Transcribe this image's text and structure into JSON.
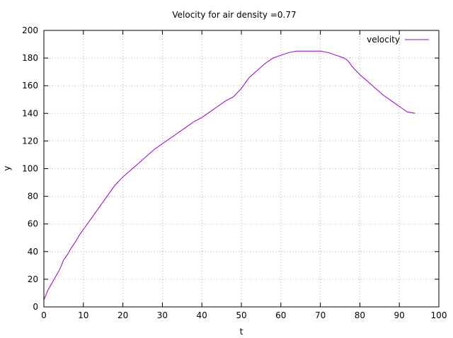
{
  "chart_data": {
    "type": "line",
    "title": "Velocity for air density =0.77",
    "xlabel": "t",
    "ylabel": "y",
    "xlim": [
      0,
      100
    ],
    "ylim": [
      0,
      200
    ],
    "xticks": [
      0,
      10,
      20,
      30,
      40,
      50,
      60,
      70,
      80,
      90,
      100
    ],
    "yticks": [
      0,
      20,
      40,
      60,
      80,
      100,
      120,
      140,
      160,
      180,
      200
    ],
    "grid": true,
    "legend": "top-right",
    "series": [
      {
        "name": "velocity",
        "color": "#9400d3",
        "x": [
          0,
          1,
          2,
          3,
          4,
          5,
          6,
          7,
          8,
          9,
          10,
          12,
          14,
          16,
          18,
          20,
          22,
          24,
          26,
          28,
          30,
          32,
          34,
          36,
          38,
          40,
          42,
          44,
          46,
          48,
          50,
          52,
          54,
          56,
          58,
          60,
          62,
          64,
          66,
          68,
          70,
          72,
          74,
          76,
          77,
          78,
          80,
          82,
          84,
          86,
          88,
          90,
          92,
          94
        ],
        "y": [
          5,
          12,
          17,
          22,
          27,
          34,
          38,
          43,
          47,
          52,
          56,
          64,
          72,
          80,
          88,
          94,
          99,
          104,
          109,
          114,
          118,
          122,
          126,
          130,
          134,
          137,
          141,
          145,
          149,
          152,
          158,
          166,
          171,
          176,
          180,
          182,
          184,
          185,
          185,
          185,
          185,
          184,
          182,
          180,
          178,
          174,
          168,
          163,
          158,
          153,
          149,
          145,
          141,
          140
        ]
      }
    ]
  }
}
